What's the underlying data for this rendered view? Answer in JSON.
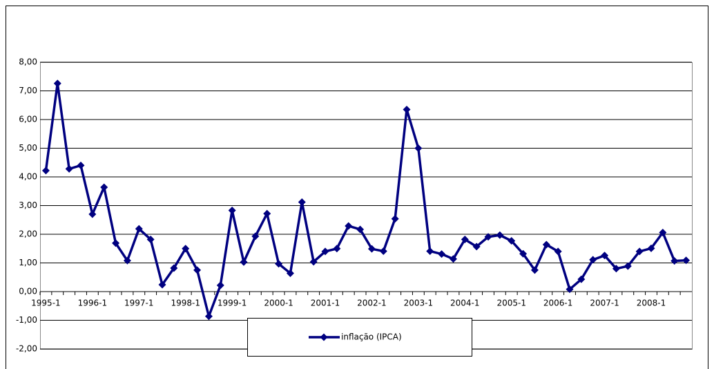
{
  "chart_data": {
    "type": "line",
    "categories": [
      "1995-1",
      null,
      null,
      null,
      "1996-1",
      null,
      null,
      null,
      "1997-1",
      null,
      null,
      null,
      "1998-1",
      null,
      null,
      null,
      "1999-1",
      null,
      null,
      null,
      "2000-1",
      null,
      null,
      null,
      "2001-1",
      null,
      null,
      null,
      "2002-1",
      null,
      null,
      null,
      "2003-1",
      null,
      null,
      null,
      "2004-1",
      null,
      null,
      null,
      "2005-1",
      null,
      null,
      null,
      "2006-1",
      null,
      null,
      null,
      "2007-1",
      null,
      null,
      null,
      "2008-1",
      null,
      null,
      null
    ],
    "series": [
      {
        "name": "inflação (IPCA)",
        "color": "#000080",
        "values": [
          4.22,
          7.26,
          4.28,
          4.4,
          2.7,
          3.64,
          1.69,
          1.08,
          2.19,
          1.82,
          0.24,
          0.82,
          1.5,
          0.75,
          -0.86,
          0.22,
          2.83,
          1.03,
          1.93,
          2.72,
          0.97,
          0.64,
          3.12,
          1.04,
          1.4,
          1.5,
          2.29,
          2.17,
          1.49,
          1.41,
          2.54,
          6.35,
          5.0,
          1.41,
          1.31,
          1.14,
          1.82,
          1.57,
          1.91,
          1.97,
          1.77,
          1.32,
          0.75,
          1.64,
          1.4,
          0.08,
          0.43,
          1.11,
          1.26,
          0.8,
          0.89,
          1.4,
          1.51,
          2.06,
          1.07,
          1.09
        ]
      }
    ],
    "ylim": [
      -2,
      8
    ],
    "yticks": [
      {
        "value": -2,
        "label": "-2,00"
      },
      {
        "value": -1,
        "label": "-1,00"
      },
      {
        "value": 0,
        "label": "0,00"
      },
      {
        "value": 1,
        "label": "1,00"
      },
      {
        "value": 2,
        "label": "2,00"
      },
      {
        "value": 3,
        "label": "3,00"
      },
      {
        "value": 4,
        "label": "4,00"
      },
      {
        "value": 5,
        "label": "5,00"
      },
      {
        "value": 6,
        "label": "6,00"
      },
      {
        "value": 7,
        "label": "7,00"
      },
      {
        "value": 8,
        "label": "8,00"
      }
    ],
    "grid": true,
    "legend": "bottom"
  }
}
